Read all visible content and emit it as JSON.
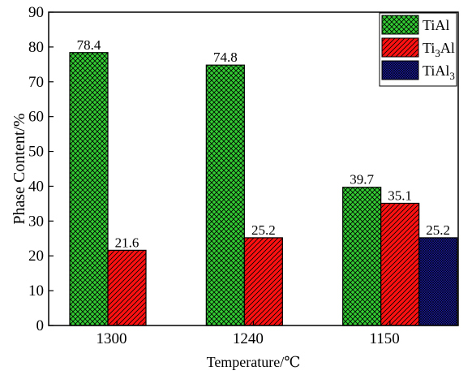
{
  "chart_data": {
    "type": "bar",
    "categories": [
      "1300",
      "1240",
      "1150"
    ],
    "series": [
      {
        "name": "TiAl",
        "values": [
          78.4,
          74.8,
          39.7
        ],
        "color": "#33cc33",
        "pattern": "crosshatch"
      },
      {
        "name": "Ti3Al",
        "name_parts": [
          "Ti",
          "3",
          "Al"
        ],
        "values": [
          21.6,
          25.2,
          35.1
        ],
        "color": "#ff1111",
        "pattern": "diagonal"
      },
      {
        "name": "TiAl3",
        "name_parts": [
          "TiAl",
          "3",
          ""
        ],
        "values": [
          null,
          null,
          25.2
        ],
        "color": "#1a1aa0",
        "pattern": "dense-crosshatch"
      }
    ],
    "data_labels": [
      [
        "78.4",
        "74.8",
        "39.7"
      ],
      [
        "21.6",
        "25.2",
        "35.1"
      ],
      [
        "",
        "",
        "25.2"
      ]
    ],
    "xlabel": "Temperature/℃",
    "ylabel": "Phase Content/%",
    "ylim": [
      0,
      90
    ],
    "yticks": [
      0,
      10,
      20,
      30,
      40,
      50,
      60,
      70,
      80,
      90
    ],
    "legend_position": "top-right",
    "grid": false
  }
}
